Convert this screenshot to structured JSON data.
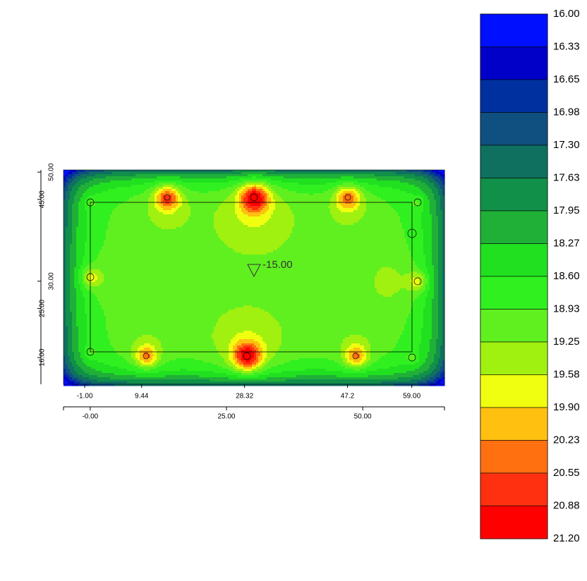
{
  "chart_data": {
    "type": "contour",
    "annotation": "-15.00",
    "xlim": [
      -4.9,
      65
    ],
    "xticks": [
      {
        "value": 0,
        "label": "-0.00"
      },
      {
        "value": 25,
        "label": "25.00"
      },
      {
        "value": 50,
        "label": "50.00"
      }
    ],
    "x_well_ticks": [
      {
        "value": -1,
        "label": "-1.00"
      },
      9.44,
      28.32,
      47.2,
      {
        "value": 59,
        "label": "59.00"
      }
    ],
    "ylim": [
      11.1,
      50.4
    ],
    "yticks": [
      {
        "value": 16,
        "label": "16.00"
      },
      {
        "value": 25,
        "label": "25.00"
      },
      {
        "value": 30,
        "label": "30.00"
      },
      {
        "value": 45,
        "label": "45.00"
      },
      {
        "value": 50,
        "label": "50.00"
      }
    ],
    "colorbar": {
      "levels": [
        {
          "value": 16,
          "label": "16.00"
        },
        16.33,
        16.65,
        16.98,
        {
          "value": 17.3,
          "label": "17.30"
        },
        17.63,
        17.95,
        18.27,
        {
          "value": 18.6,
          "label": "18.60"
        },
        18.93,
        19.25,
        19.58,
        {
          "value": 19.9,
          "label": "19.90"
        },
        20.23,
        20.55,
        20.88,
        {
          "value": 21.2,
          "label": "21.20"
        }
      ],
      "colors": [
        "#0010ff",
        "#0000c8",
        "#0030a0",
        "#105080",
        "#107060",
        "#109048",
        "#20b038",
        "#20e020",
        "#30f020",
        "#60f020",
        "#a0f010",
        "#f0ff10",
        "#ffc010",
        "#ff7010",
        "#ff3010",
        "#ff0000"
      ]
    }
  }
}
